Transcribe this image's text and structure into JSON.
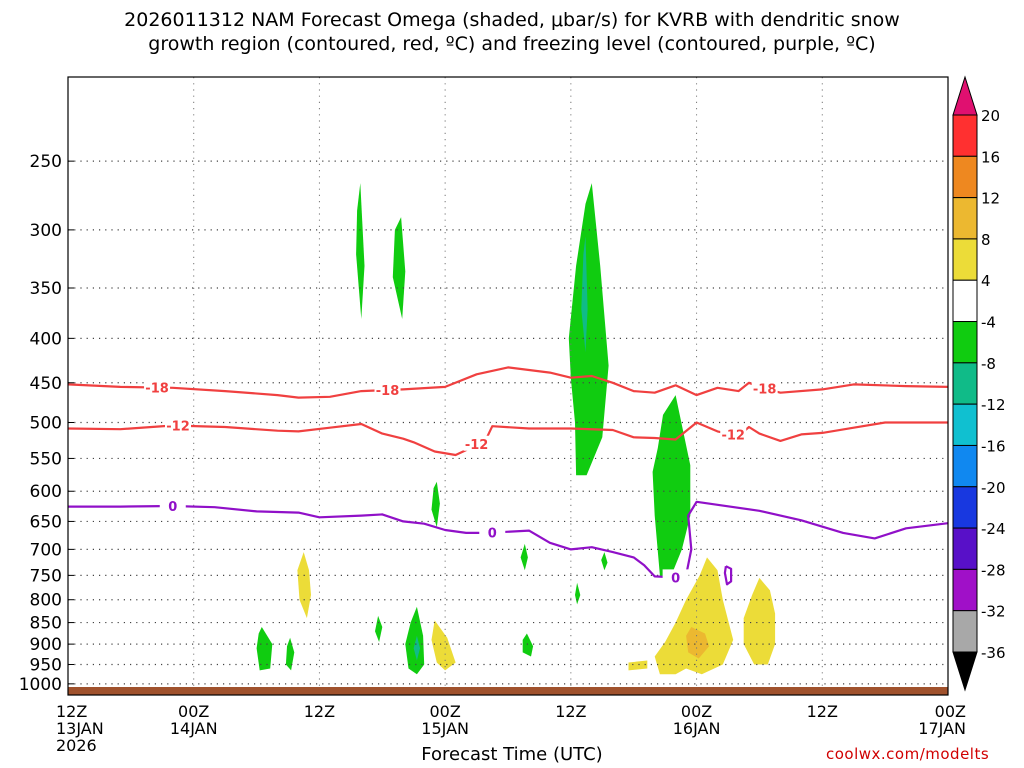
{
  "title_line1": "2026011312 NAM Forecast Omega (shaded, μbar/s) for KVRB with dendritic snow",
  "title_line2": "growth region (contoured, red, ºC) and freezing level (contoured, purple, ºC)",
  "credit": "coolwx.com/modelts",
  "chart_data": {
    "type": "time-height cross section",
    "xlabel": "Forecast Time (UTC)",
    "x_ticks": [
      {
        "hours": 0,
        "lines": [
          "12Z",
          "13JAN",
          "2026"
        ]
      },
      {
        "hours": 12,
        "lines": [
          "00Z",
          "14JAN"
        ]
      },
      {
        "hours": 24,
        "lines": [
          "12Z"
        ]
      },
      {
        "hours": 36,
        "lines": [
          "00Z",
          "15JAN"
        ]
      },
      {
        "hours": 48,
        "lines": [
          "12Z"
        ]
      },
      {
        "hours": 60,
        "lines": [
          "00Z",
          "16JAN"
        ]
      },
      {
        "hours": 72,
        "lines": [
          "12Z"
        ]
      },
      {
        "hours": 84,
        "lines": [
          "00Z",
          "17JAN"
        ]
      }
    ],
    "y_ticks": [
      250,
      300,
      350,
      400,
      450,
      500,
      550,
      600,
      650,
      700,
      750,
      800,
      850,
      900,
      950,
      1000
    ],
    "xlim": [
      0,
      84
    ],
    "ylim": [
      200,
      1030
    ],
    "log_pressure_axis": true,
    "grid": true,
    "colorbar": {
      "labels": [
        "20",
        "16",
        "12",
        "8",
        "4",
        "-4",
        "-8",
        "-12",
        "-16",
        "-20",
        "-24",
        "-28",
        "-32",
        "-36"
      ],
      "bins": [
        {
          "color": "#e01070"
        },
        {
          "color": "#ff3030"
        },
        {
          "color": "#ee8820"
        },
        {
          "color": "#ecb830"
        },
        {
          "color": "#ecdc38"
        },
        {
          "color": "#ffffff"
        },
        {
          "color": "#10cc10"
        },
        {
          "color": "#10bb88"
        },
        {
          "color": "#10c0d0"
        },
        {
          "color": "#1088f0"
        },
        {
          "color": "#1838e0"
        },
        {
          "color": "#5810c8"
        },
        {
          "color": "#a010c8"
        },
        {
          "color": "#a8a8a8"
        },
        {
          "color": "#000000"
        }
      ]
    },
    "omega_regions": [
      {
        "value": -6,
        "color": "#10cc10",
        "points": [
          [
            27.9,
            265
          ],
          [
            28.3,
            330
          ],
          [
            28.0,
            380
          ],
          [
            27.5,
            320
          ],
          [
            27.6,
            285
          ]
        ]
      },
      {
        "value": -6,
        "color": "#10cc10",
        "points": [
          [
            31.8,
            290
          ],
          [
            32.2,
            335
          ],
          [
            31.9,
            380
          ],
          [
            31.0,
            340
          ],
          [
            31.2,
            300
          ]
        ]
      },
      {
        "value": -6,
        "color": "#10cc10",
        "points": [
          [
            50.0,
            265
          ],
          [
            50.8,
            330
          ],
          [
            51.6,
            430
          ],
          [
            51.0,
            520
          ],
          [
            49.5,
            575
          ],
          [
            48.5,
            575
          ],
          [
            48.4,
            500
          ],
          [
            48.0,
            445
          ],
          [
            47.8,
            400
          ],
          [
            48.5,
            330
          ],
          [
            49.4,
            280
          ]
        ]
      },
      {
        "value": -10,
        "color": "#10bb88",
        "points": [
          [
            49.4,
            305
          ],
          [
            49.6,
            370
          ],
          [
            49.4,
            415
          ],
          [
            49.0,
            370
          ],
          [
            49.2,
            320
          ]
        ]
      },
      {
        "value": -6,
        "color": "#10cc10",
        "points": [
          [
            58.0,
            465
          ],
          [
            59.4,
            560
          ],
          [
            59.4,
            640
          ],
          [
            58.6,
            700
          ],
          [
            57.4,
            760
          ],
          [
            56.5,
            750
          ],
          [
            56.0,
            640
          ],
          [
            55.8,
            570
          ],
          [
            56.3,
            535
          ],
          [
            56.8,
            490
          ]
        ]
      },
      {
        "value": -6,
        "color": "#10cc10",
        "points": [
          [
            35.2,
            585
          ],
          [
            35.5,
            620
          ],
          [
            35.2,
            660
          ],
          [
            34.7,
            630
          ],
          [
            34.9,
            595
          ]
        ]
      },
      {
        "value": -6,
        "color": "#10cc10",
        "points": [
          [
            43.6,
            690
          ],
          [
            43.9,
            715
          ],
          [
            43.6,
            740
          ],
          [
            43.2,
            715
          ]
        ]
      },
      {
        "value": -6,
        "color": "#10cc10",
        "points": [
          [
            51.2,
            705
          ],
          [
            51.5,
            725
          ],
          [
            51.2,
            740
          ],
          [
            50.9,
            720
          ]
        ]
      },
      {
        "value": -6,
        "color": "#10cc10",
        "points": [
          [
            48.6,
            765
          ],
          [
            48.9,
            790
          ],
          [
            48.6,
            810
          ],
          [
            48.4,
            790
          ]
        ]
      },
      {
        "value": -6,
        "color": "#10cc10",
        "points": [
          [
            18.5,
            860
          ],
          [
            19.5,
            900
          ],
          [
            19.3,
            960
          ],
          [
            18.3,
            965
          ],
          [
            18.0,
            910
          ],
          [
            18.2,
            875
          ]
        ]
      },
      {
        "value": -6,
        "color": "#10cc10",
        "points": [
          [
            21.2,
            885
          ],
          [
            21.6,
            920
          ],
          [
            21.3,
            965
          ],
          [
            20.8,
            950
          ],
          [
            20.9,
            905
          ]
        ]
      },
      {
        "value": -6,
        "color": "#10cc10",
        "points": [
          [
            29.6,
            835
          ],
          [
            30.0,
            860
          ],
          [
            29.7,
            895
          ],
          [
            29.3,
            870
          ]
        ]
      },
      {
        "value": -6,
        "color": "#10cc10",
        "points": [
          [
            33.3,
            815
          ],
          [
            33.9,
            880
          ],
          [
            34.0,
            950
          ],
          [
            33.3,
            975
          ],
          [
            32.5,
            960
          ],
          [
            32.2,
            900
          ],
          [
            32.7,
            850
          ]
        ]
      },
      {
        "value": -10,
        "color": "#10bb88",
        "points": [
          [
            33.3,
            880
          ],
          [
            33.6,
            910
          ],
          [
            33.3,
            940
          ],
          [
            33.0,
            910
          ]
        ]
      },
      {
        "value": -6,
        "color": "#10cc10",
        "points": [
          [
            43.8,
            875
          ],
          [
            44.4,
            905
          ],
          [
            44.2,
            930
          ],
          [
            43.4,
            920
          ],
          [
            43.4,
            890
          ]
        ]
      },
      {
        "value": 6,
        "color": "#ecdc38",
        "points": [
          [
            22.5,
            705
          ],
          [
            23.0,
            740
          ],
          [
            23.2,
            790
          ],
          [
            22.8,
            840
          ],
          [
            22.1,
            800
          ],
          [
            21.9,
            740
          ]
        ]
      },
      {
        "value": 6,
        "color": "#ecdc38",
        "points": [
          [
            35.0,
            845
          ],
          [
            36.2,
            885
          ],
          [
            37.0,
            945
          ],
          [
            36.0,
            965
          ],
          [
            35.2,
            945
          ],
          [
            34.7,
            890
          ]
        ]
      },
      {
        "value": 6,
        "color": "#ecdc38",
        "points": [
          [
            53.5,
            945
          ],
          [
            55.3,
            940
          ],
          [
            55.3,
            960
          ],
          [
            53.5,
            965
          ]
        ]
      },
      {
        "value": 6,
        "color": "#ecdc38",
        "points": [
          [
            61.0,
            715
          ],
          [
            62.0,
            740
          ],
          [
            62.5,
            800
          ],
          [
            63.5,
            890
          ],
          [
            62.5,
            950
          ],
          [
            60.5,
            975
          ],
          [
            59.0,
            960
          ],
          [
            58.0,
            975
          ],
          [
            56.5,
            975
          ],
          [
            56.0,
            930
          ],
          [
            57.0,
            895
          ],
          [
            58.0,
            850
          ],
          [
            59.0,
            800
          ],
          [
            60.3,
            750
          ]
        ]
      },
      {
        "value": 10,
        "color": "#ecb830",
        "points": [
          [
            59.5,
            860
          ],
          [
            60.8,
            875
          ],
          [
            61.2,
            905
          ],
          [
            60.2,
            935
          ],
          [
            59.2,
            920
          ],
          [
            59.0,
            880
          ]
        ]
      },
      {
        "value": 6,
        "color": "#ecdc38",
        "points": [
          [
            66.0,
            755
          ],
          [
            67.0,
            780
          ],
          [
            67.5,
            830
          ],
          [
            67.5,
            900
          ],
          [
            66.8,
            950
          ],
          [
            65.5,
            950
          ],
          [
            64.5,
            900
          ],
          [
            64.5,
            840
          ],
          [
            65.3,
            790
          ]
        ]
      }
    ],
    "temperature_contours": [
      {
        "label": "-18",
        "color": "#f04040",
        "labels_at_hours": [
          8.5,
          30.5,
          66.5
        ],
        "points": [
          [
            0,
            452
          ],
          [
            5,
            455
          ],
          [
            10,
            456
          ],
          [
            15,
            460
          ],
          [
            20,
            465
          ],
          [
            22,
            468
          ],
          [
            25,
            467
          ],
          [
            28,
            460
          ],
          [
            32,
            458
          ],
          [
            36,
            455
          ],
          [
            39,
            440
          ],
          [
            42,
            432
          ],
          [
            46,
            438
          ],
          [
            48,
            444
          ],
          [
            50,
            442
          ],
          [
            52,
            450
          ],
          [
            54,
            460
          ],
          [
            56,
            462
          ],
          [
            58,
            453
          ],
          [
            60,
            465
          ],
          [
            62,
            456
          ],
          [
            64,
            460
          ],
          [
            65,
            450
          ],
          [
            66,
            455
          ],
          [
            68,
            462
          ],
          [
            72,
            458
          ],
          [
            75,
            452
          ],
          [
            80,
            454
          ],
          [
            84,
            455
          ]
        ]
      },
      {
        "label": "-12",
        "color": "#f04040",
        "labels_at_hours": [
          10.5,
          39.0,
          63.5
        ],
        "points": [
          [
            0,
            508
          ],
          [
            5,
            509
          ],
          [
            10,
            504
          ],
          [
            15,
            506
          ],
          [
            20,
            511
          ],
          [
            22,
            512
          ],
          [
            25,
            507
          ],
          [
            28,
            502
          ],
          [
            30,
            515
          ],
          [
            32,
            522
          ],
          [
            33,
            527
          ],
          [
            35,
            540
          ],
          [
            37,
            545
          ],
          [
            38,
            538
          ],
          [
            40,
            520
          ],
          [
            40.5,
            505
          ],
          [
            44,
            508
          ],
          [
            48,
            508
          ],
          [
            52,
            510
          ],
          [
            54,
            520
          ],
          [
            56,
            521
          ],
          [
            58,
            523
          ],
          [
            60,
            500
          ],
          [
            62,
            512
          ],
          [
            64,
            518
          ],
          [
            65,
            506
          ],
          [
            66,
            515
          ],
          [
            68,
            525
          ],
          [
            70,
            516
          ],
          [
            72,
            514
          ],
          [
            75,
            507
          ],
          [
            78,
            500
          ],
          [
            84,
            500
          ]
        ]
      },
      {
        "label": "0",
        "color": "#9010c8",
        "labels_at_hours": [
          10.0,
          40.5,
          58.0
        ],
        "points": [
          [
            0,
            625
          ],
          [
            5,
            625
          ],
          [
            10,
            624
          ],
          [
            14,
            626
          ],
          [
            18,
            633
          ],
          [
            22,
            635
          ],
          [
            24,
            643
          ],
          [
            28,
            640
          ],
          [
            30,
            638
          ],
          [
            32,
            650
          ],
          [
            34,
            654
          ],
          [
            36,
            665
          ],
          [
            38,
            670
          ],
          [
            40,
            670
          ],
          [
            44,
            666
          ],
          [
            46,
            688
          ],
          [
            48,
            700
          ],
          [
            50,
            696
          ],
          [
            52,
            705
          ],
          [
            54,
            715
          ],
          [
            55,
            730
          ],
          [
            56,
            752
          ],
          [
            58,
            754
          ],
          [
            59,
            750
          ],
          [
            59.5,
            700
          ],
          [
            59.2,
            640
          ],
          [
            60,
            617
          ],
          [
            62,
            622
          ],
          [
            66,
            632
          ],
          [
            70,
            648
          ],
          [
            74,
            670
          ],
          [
            77,
            680
          ],
          [
            80,
            662
          ],
          [
            84,
            653
          ]
        ]
      },
      {
        "label": "",
        "color": "#9010c8",
        "labels_at_hours": [],
        "points": [
          [
            62.8,
            732
          ],
          [
            63.3,
            737
          ],
          [
            63.3,
            762
          ],
          [
            62.9,
            768
          ],
          [
            62.7,
            745
          ],
          [
            62.8,
            732
          ]
        ]
      }
    ],
    "terrain_color": "#a0522d"
  }
}
